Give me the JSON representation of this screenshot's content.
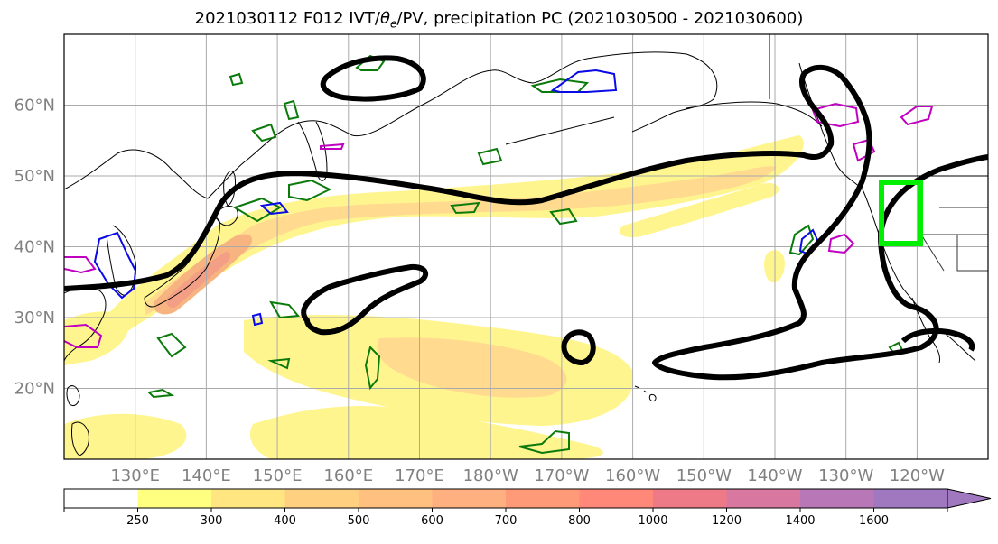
{
  "title": "2021030112 F012 IVT/θe/PV, precipitation PC (2021030500 - 2021030600)",
  "title_parts": {
    "prefix": "2021030112 F012 IVT/",
    "theta": "θ",
    "sub": "e",
    "suffix": "/PV, precipitation PC (2021030500 - 2021030600)"
  },
  "map": {
    "projection": "PlateCarree",
    "lon_range": [
      120,
      250
    ],
    "lat_range": [
      10,
      70
    ],
    "lon_ticks": [
      "130°E",
      "140°E",
      "150°E",
      "160°E",
      "170°E",
      "180°W",
      "170°W",
      "160°W",
      "150°W",
      "140°W",
      "130°W",
      "120°W"
    ],
    "lat_ticks": [
      "60°N",
      "50°N",
      "40°N",
      "30°N",
      "20°N"
    ],
    "gridlines": true,
    "gridline_color": "#aaaaaa",
    "coastline_color": "#000000",
    "highlight_box": {
      "lon": [
        233,
        239
      ],
      "lat": [
        40,
        49
      ],
      "color": "#00ee00"
    }
  },
  "colorbar": {
    "levels": [
      "250",
      "300",
      "400",
      "500",
      "600",
      "700",
      "800",
      "1000",
      "1200",
      "1400",
      "1600"
    ],
    "colors": [
      "#ffffff",
      "#ffff80",
      "#ffe680",
      "#ffd080",
      "#ffc080",
      "#ffb080",
      "#ff9a78",
      "#ff8878",
      "#ee7a88",
      "#d878a0",
      "#b878b8",
      "#a078c0"
    ],
    "extend": "max"
  },
  "legend_colors": {
    "pv_contour": "#000000",
    "theta_contour_green": "#0a7a0a",
    "theta_contour_blue": "#0a0ae6",
    "theta_contour_magenta": "#c000c0"
  }
}
